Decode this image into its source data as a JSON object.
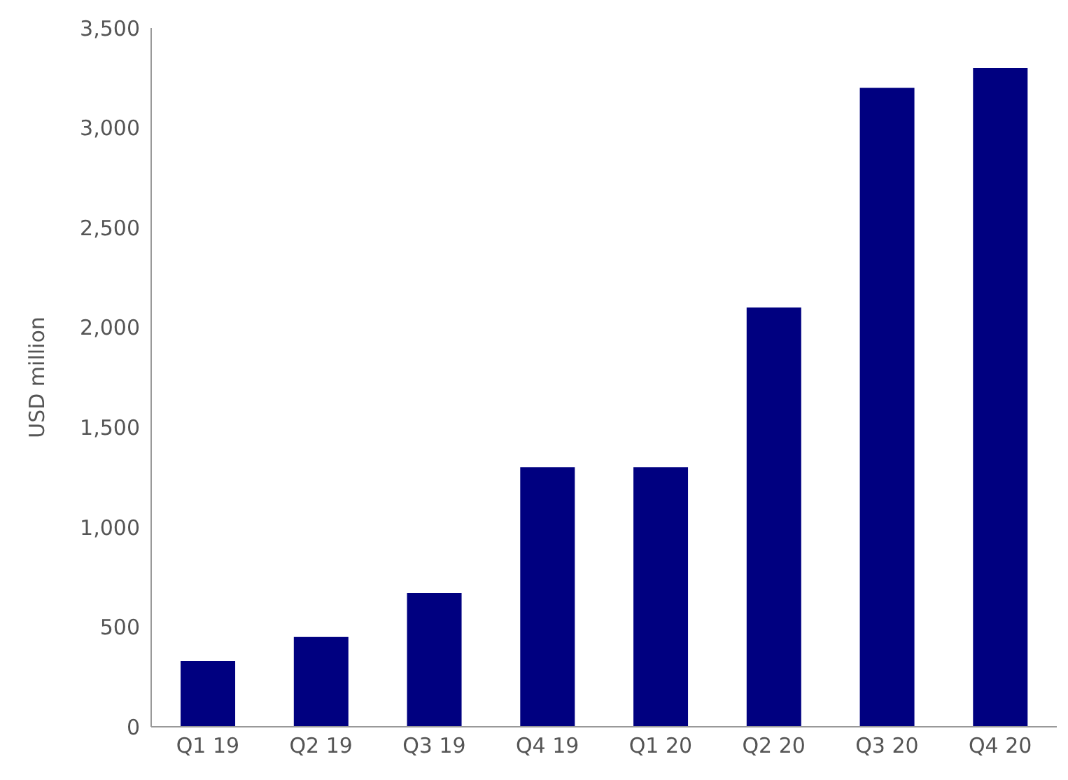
{
  "chart_data": {
    "type": "bar",
    "ylabel": "USD million",
    "categories": [
      "Q1 19",
      "Q2 19",
      "Q3 19",
      "Q4 19",
      "Q1 20",
      "Q2 20",
      "Q3 20",
      "Q4 20"
    ],
    "values": [
      330,
      450,
      670,
      1300,
      1300,
      2100,
      3200,
      3300
    ],
    "color": "#000080",
    "ylim": [
      0,
      3500
    ],
    "yticks": [
      0,
      500,
      {
        "value": 1000,
        "label": "1,000"
      },
      {
        "value": 1500,
        "label": "1,500"
      },
      {
        "value": 2000,
        "label": "2,000"
      },
      {
        "value": 2500,
        "label": "2,500"
      },
      {
        "value": 3000,
        "label": "3,000"
      },
      {
        "value": 3500,
        "label": "3,500"
      }
    ],
    "grid": false
  }
}
